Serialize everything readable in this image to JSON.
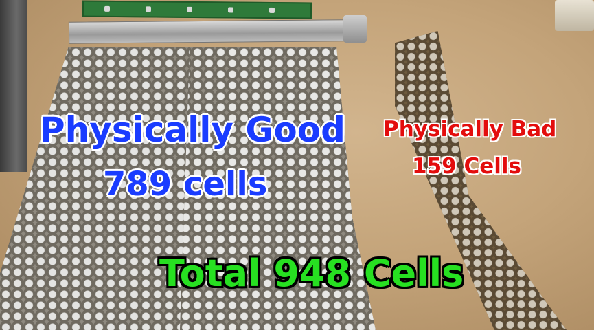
{
  "overlay": {
    "good_heading": "Physically Good",
    "good_count": "789 cells",
    "bad_heading": "Physically Bad",
    "bad_count": "159 Cells",
    "total": "Total 948 Cells"
  },
  "colors": {
    "good_text": "#1a3cff",
    "bad_text": "#e30d0d",
    "total_text": "#27e021",
    "good_outline": "#ffffff",
    "bad_outline": "#ffffff",
    "total_outline": "#000000",
    "table_surface": "#c4a47a"
  }
}
